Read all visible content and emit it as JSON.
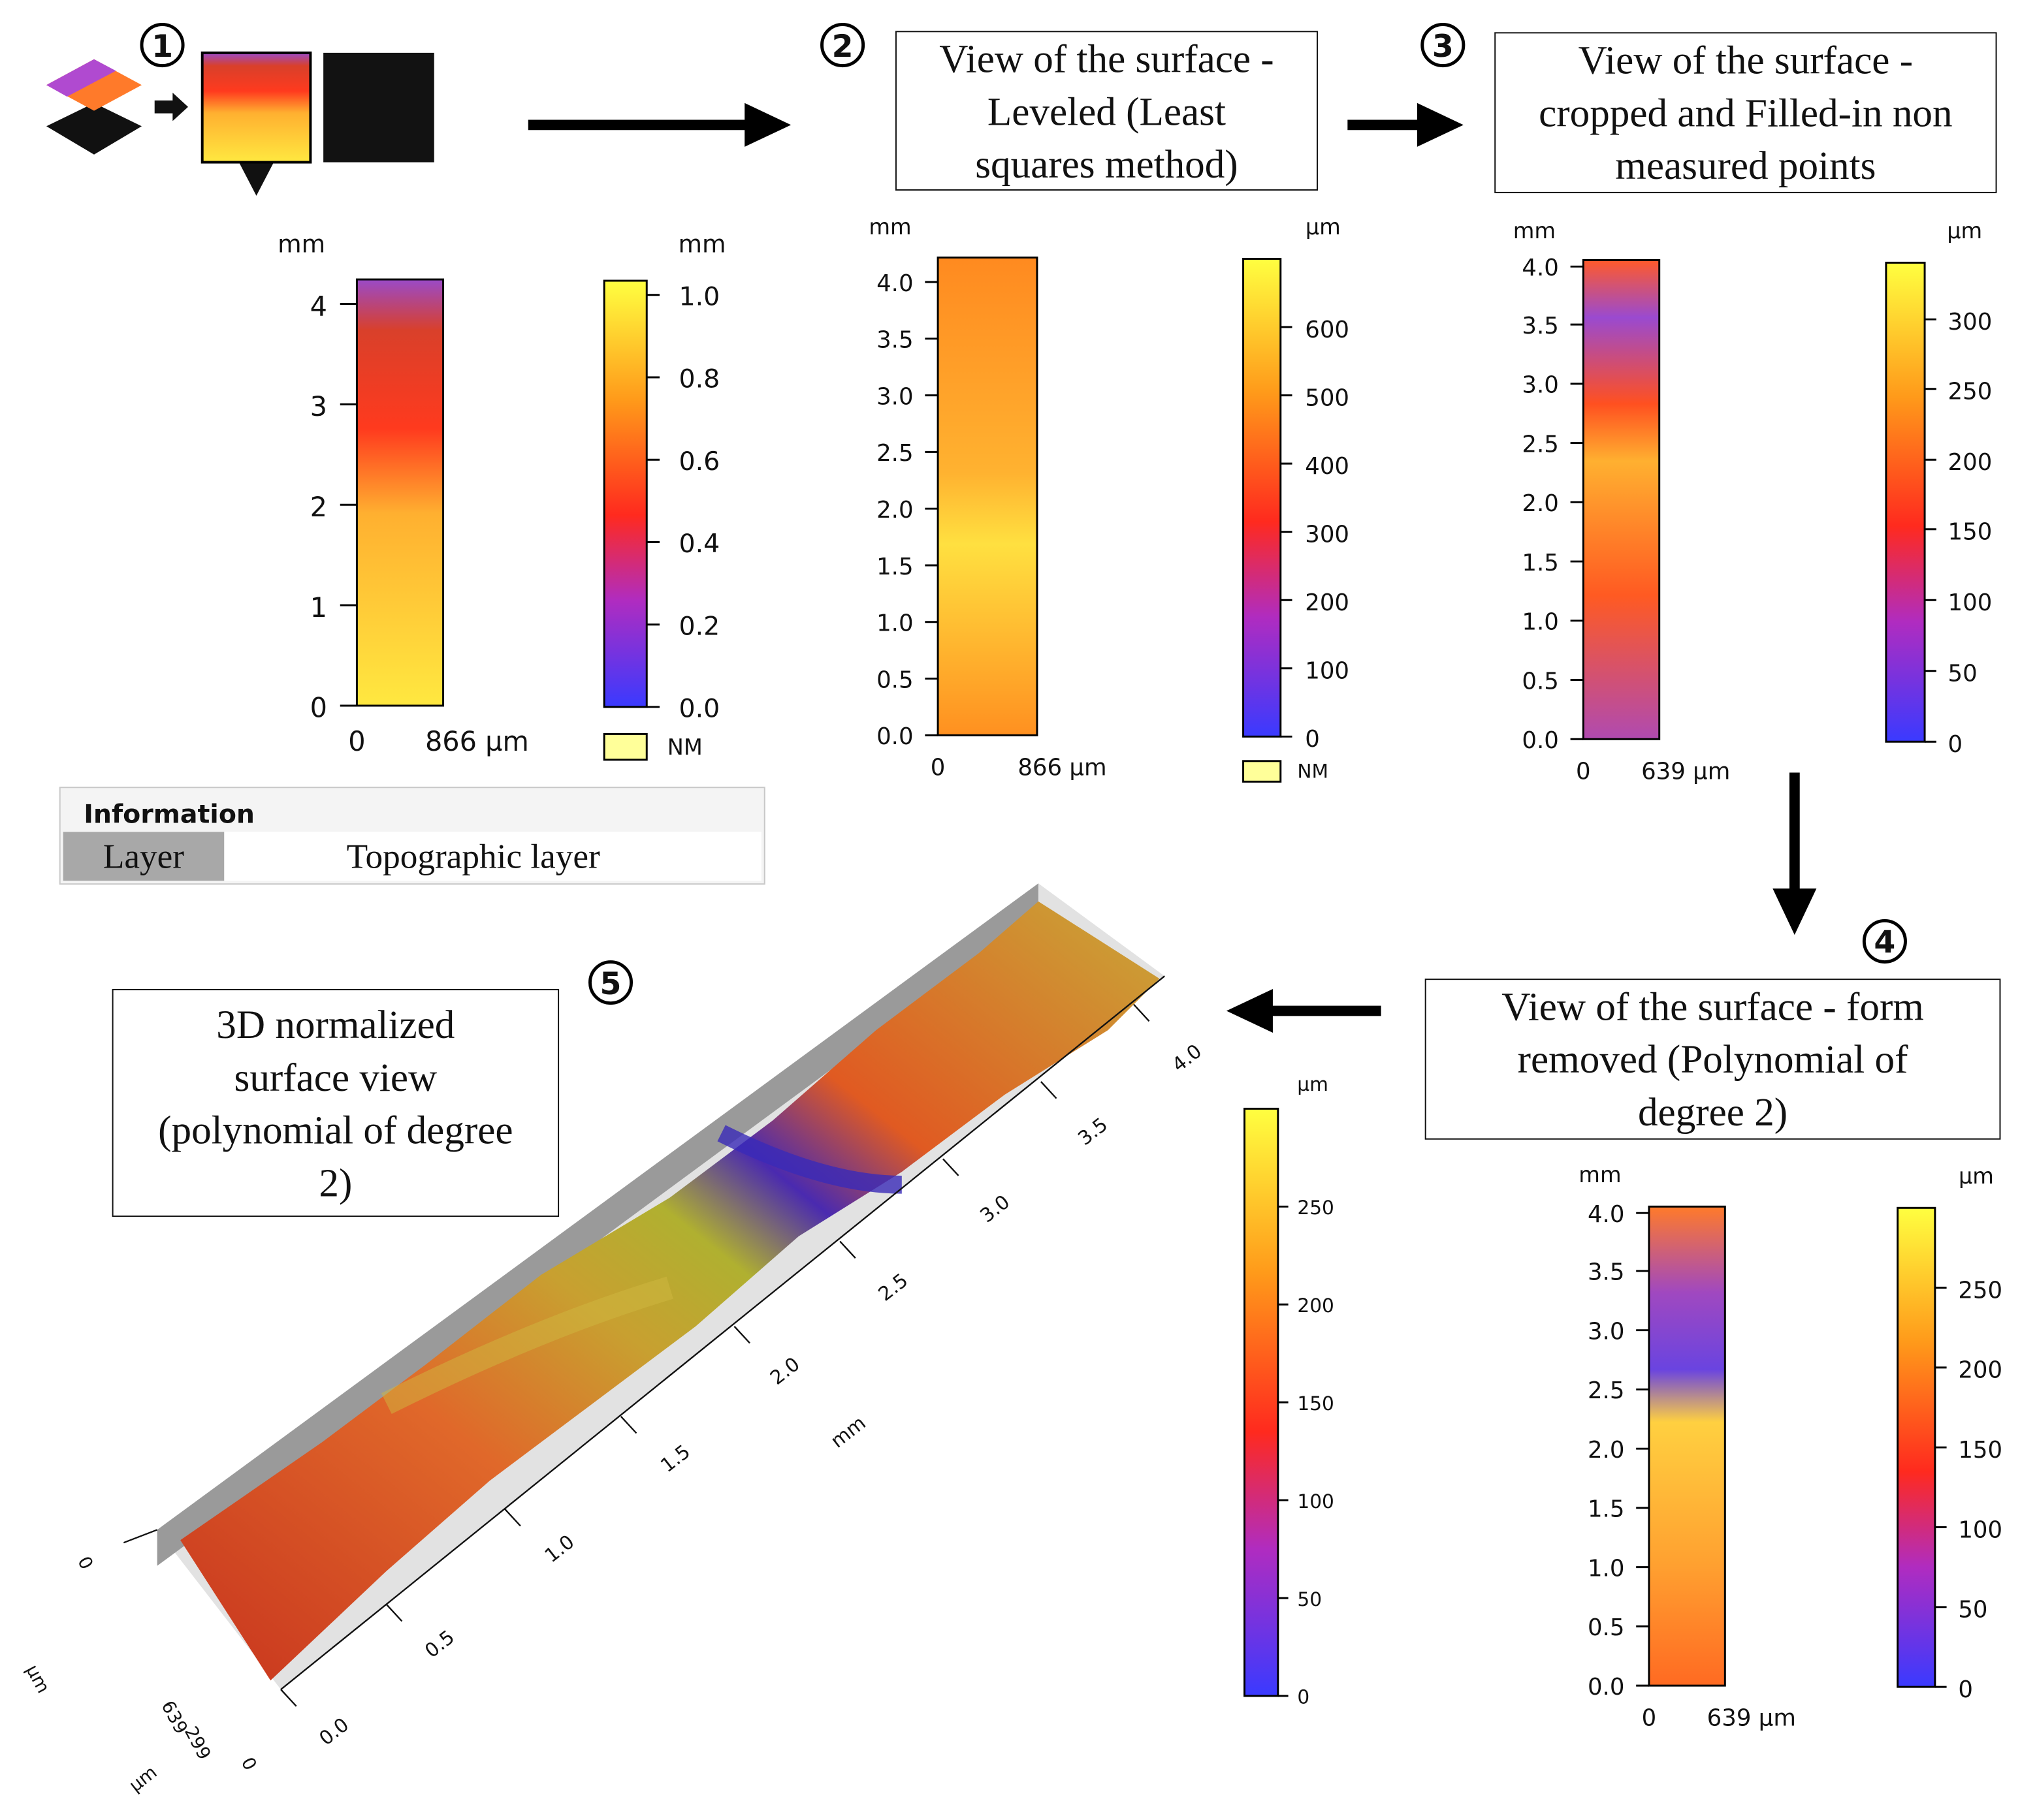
{
  "steps": {
    "s1": {
      "number": "1"
    },
    "s2": {
      "number": "2",
      "title": [
        "View of the surface -",
        "Leveled (Least",
        "squares method)"
      ]
    },
    "s3": {
      "number": "3",
      "title": [
        "View of the surface -",
        "cropped and Filled-in non",
        "measured points"
      ]
    },
    "s4": {
      "number": "4",
      "title": [
        "View of the surface - form",
        "removed (Polynomial of",
        "degree 2)"
      ]
    },
    "s5": {
      "number": "5",
      "title": [
        "3D normalized",
        "surface view",
        "(polynomial of degree",
        "2)"
      ]
    }
  },
  "information": {
    "header": "Information",
    "key": "Layer",
    "value": "Topographic layer"
  },
  "panels": {
    "p1": {
      "y_unit": "mm",
      "y_ticks": [
        "0",
        "1",
        "2",
        "3",
        "4"
      ],
      "x_ticks": [
        "0",
        "866 µm"
      ],
      "scale_unit": "mm",
      "scale_ticks": [
        "0.0",
        "0.2",
        "0.4",
        "0.6",
        "0.8",
        "1.0"
      ],
      "nm_label": "NM"
    },
    "p2": {
      "y_unit": "mm",
      "y_ticks": [
        "0.0",
        "0.5",
        "1.0",
        "1.5",
        "2.0",
        "2.5",
        "3.0",
        "3.5",
        "4.0"
      ],
      "x_ticks": [
        "0",
        "866 µm"
      ],
      "scale_unit": "µm",
      "scale_ticks": [
        "0",
        "100",
        "200",
        "300",
        "400",
        "500",
        "600"
      ],
      "nm_label": "NM"
    },
    "p3": {
      "y_unit": "mm",
      "y_ticks": [
        "0.0",
        "0.5",
        "1.0",
        "1.5",
        "2.0",
        "2.5",
        "3.0",
        "3.5",
        "4.0"
      ],
      "x_ticks": [
        "0",
        "639 µm"
      ],
      "scale_unit": "µm",
      "scale_ticks": [
        "0",
        "50",
        "100",
        "150",
        "200",
        "250",
        "300"
      ]
    },
    "p4": {
      "y_unit": "mm",
      "y_ticks": [
        "0.0",
        "0.5",
        "1.0",
        "1.5",
        "2.0",
        "2.5",
        "3.0",
        "3.5",
        "4.0"
      ],
      "x_ticks": [
        "0",
        "639 µm"
      ],
      "scale_unit": "µm",
      "scale_ticks": [
        "0",
        "50",
        "100",
        "150",
        "200",
        "250"
      ]
    },
    "p5": {
      "scale_unit": "µm",
      "scale_ticks": [
        "0",
        "50",
        "100",
        "150",
        "200",
        "250"
      ],
      "length_ticks": [
        "0.0",
        "0.5",
        "1.0",
        "1.5",
        "2.0",
        "2.5",
        "3.0",
        "3.5",
        "4.0"
      ],
      "length_unit": "mm",
      "width_ticks": [
        "0",
        "299",
        "639"
      ],
      "width_unit": "µm",
      "height_tick": "0",
      "height_unit": "µm"
    }
  },
  "colors": {
    "low": "#3b3bff",
    "mid": "#ff3a1a",
    "high": "#ffff33",
    "arrow": "#000000"
  }
}
